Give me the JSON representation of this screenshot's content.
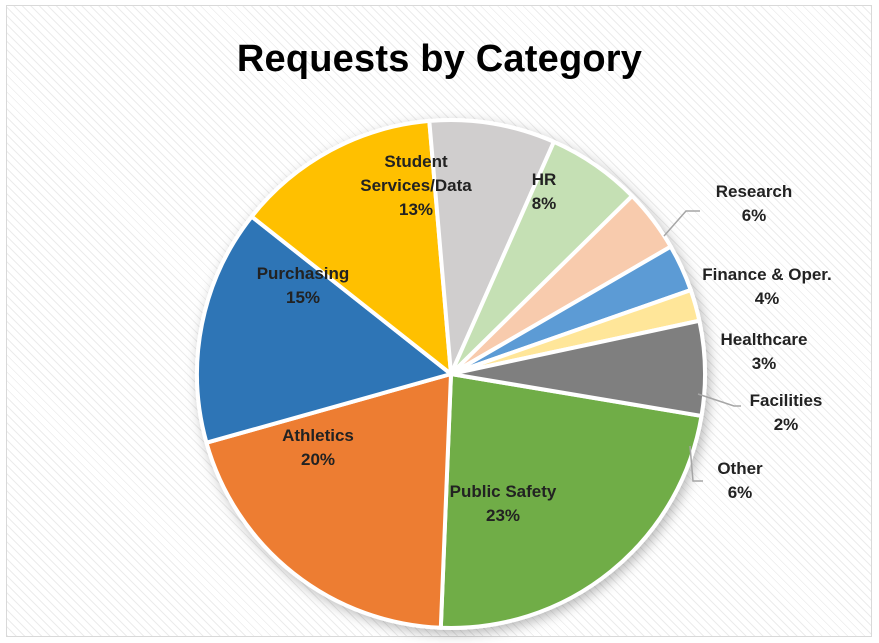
{
  "chart_data": {
    "type": "pie",
    "title": "Requests by Category",
    "slices": [
      {
        "label": "Public Safety",
        "value": 23,
        "value_label": "23%",
        "color": "#70AD47"
      },
      {
        "label": "Athletics",
        "value": 20,
        "value_label": "20%",
        "color": "#ED7D31"
      },
      {
        "label": "Purchasing",
        "value": 15,
        "value_label": "15%",
        "color": "#2E75B6"
      },
      {
        "label": "Student Services/Data",
        "value": 13,
        "value_label": "13%",
        "color": "#FFC000"
      },
      {
        "label": "HR",
        "value": 8,
        "value_label": "8%",
        "color": "#D0CECE"
      },
      {
        "label": "Research",
        "value": 6,
        "value_label": "6%",
        "color": "#C5E0B4"
      },
      {
        "label": "Finance & Oper.",
        "value": 4,
        "value_label": "4%",
        "color": "#F8CBAD"
      },
      {
        "label": "Healthcare",
        "value": 3,
        "value_label": "3%",
        "color": "#5B9BD5"
      },
      {
        "label": "Facilities",
        "value": 2,
        "value_label": "2%",
        "color": "#FFE699"
      },
      {
        "label": "Other",
        "value": 6,
        "value_label": "6%",
        "color": "#7F7F7F"
      }
    ],
    "legend": "none",
    "data_labels": "category-and-percent"
  }
}
